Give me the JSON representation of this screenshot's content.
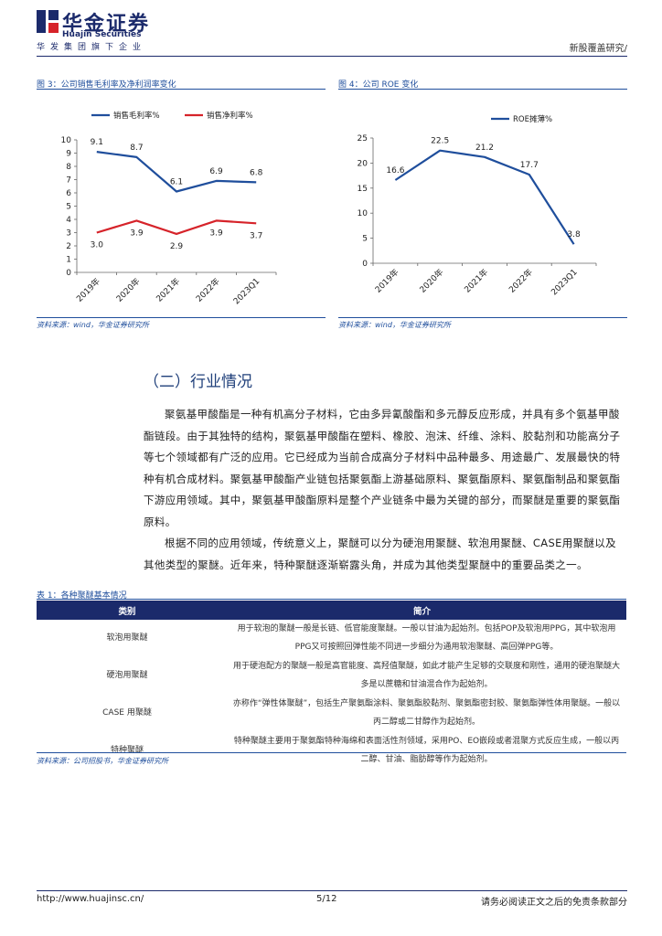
{
  "header": {
    "logo_cn": "华金证券",
    "logo_en": "Huajin Securities",
    "group_line": "华发集团旗下企业",
    "report_type": "新股覆盖研究/"
  },
  "figure3": {
    "title": "图 3：公司销售毛利率及净利润率变化",
    "source": "资料来源：wind，华金证券研究所"
  },
  "figure4": {
    "title": "图 4：公司 ROE 变化",
    "source": "资料来源：wind，华金证券研究所"
  },
  "chart_data": [
    {
      "type": "line",
      "title": "",
      "categories": [
        "2019年",
        "2020年",
        "2021年",
        "2022年",
        "2023Q1"
      ],
      "series": [
        {
          "name": "销售毛利率%",
          "color": "#1f4e9c",
          "values": [
            9.1,
            8.7,
            6.1,
            6.9,
            6.8
          ]
        },
        {
          "name": "销售净利率%",
          "color": "#d6232a",
          "values": [
            3.0,
            3.9,
            2.9,
            3.9,
            3.7
          ]
        }
      ],
      "ylim": [
        0,
        10
      ],
      "yticks": [
        0,
        1,
        2,
        3,
        4,
        5,
        6,
        7,
        8,
        9,
        10
      ],
      "legend": "top",
      "grid": false
    },
    {
      "type": "line",
      "title": "",
      "categories": [
        "2019年",
        "2020年",
        "2021年",
        "2022年",
        "2023Q1"
      ],
      "series": [
        {
          "name": "ROE摊薄%",
          "color": "#1f4e9c",
          "values": [
            16.6,
            22.5,
            21.2,
            17.7,
            3.8
          ]
        }
      ],
      "ylim": [
        0,
        25
      ],
      "yticks": [
        0,
        5,
        10,
        15,
        20,
        25
      ],
      "legend": "top",
      "grid": false
    }
  ],
  "section": {
    "title": "（二）行业情况",
    "para1": "聚氨基甲酸酯是一种有机高分子材料，它由多异氰酸酯和多元醇反应形成，并具有多个氨基甲酸酯链段。由于其独特的结构，聚氨基甲酸酯在塑料、橡胶、泡沫、纤维、涂料、胶黏剂和功能高分子等七个领域都有广泛的应用。它已经成为当前合成高分子材料中品种最多、用途最广、发展最快的特种有机合成材料。聚氨基甲酸酯产业链包括聚氨酯上游基础原料、聚氨酯原料、聚氨酯制品和聚氨酯下游应用领域。其中，聚氨基甲酸酯原料是整个产业链条中最为关键的部分，而聚醚是重要的聚氨酯原料。",
    "para2": "根据不同的应用领域，传统意义上，聚醚可以分为硬泡用聚醚、软泡用聚醚、CASE用聚醚以及其他类型的聚醚。近年来，特种聚醚逐渐崭露头角，并成为其他类型聚醚中的重要品类之一。"
  },
  "table": {
    "title": "表 1：各种聚醚基本情况",
    "headers": [
      "类别",
      "简介"
    ],
    "rows": [
      {
        "name": "软泡用聚醚",
        "desc": "用于软泡的聚醚一般是长链、低官能度聚醚。一般以甘油为起始剂。包括POP及软泡用PPG，其中软泡用PPG又可按照回弹性能不同进一步细分为通用软泡聚醚、高回弹PPG等。"
      },
      {
        "name": "硬泡用聚醚",
        "desc": "用于硬泡配方的聚醚一般是高官能度、高羟值聚醚，如此才能产生足够的交联度和刚性，通用的硬泡聚醚大多是以蔗糖和甘油混合作为起始剂。"
      },
      {
        "name": "CASE 用聚醚",
        "desc": "亦称作“弹性体聚醚”，包括生产聚氨酯涂料、聚氨酯胶黏剂、聚氨酯密封胶、聚氨酯弹性体用聚醚。一般以丙二醇或二甘醇作为起始剂。"
      },
      {
        "name": "特种聚醚",
        "desc": "特种聚醚主要用于聚氨酯特种海绵和表面活性剂领域，采用PO、EO嵌段或者混聚方式反应生成，一般以丙二醇、甘油、脂肪醇等作为起始剂。"
      }
    ],
    "source": "资料来源：公司招股书，华金证券研究所"
  },
  "footer": {
    "url": "http://www.huajinsc.cn/",
    "page": "5/12",
    "disclaimer": "请务必阅读正文之后的免责条款部分"
  },
  "colors": {
    "brand": "#1b2a6b",
    "accent_blue": "#1f4e9c",
    "accent_red": "#d6232a"
  }
}
